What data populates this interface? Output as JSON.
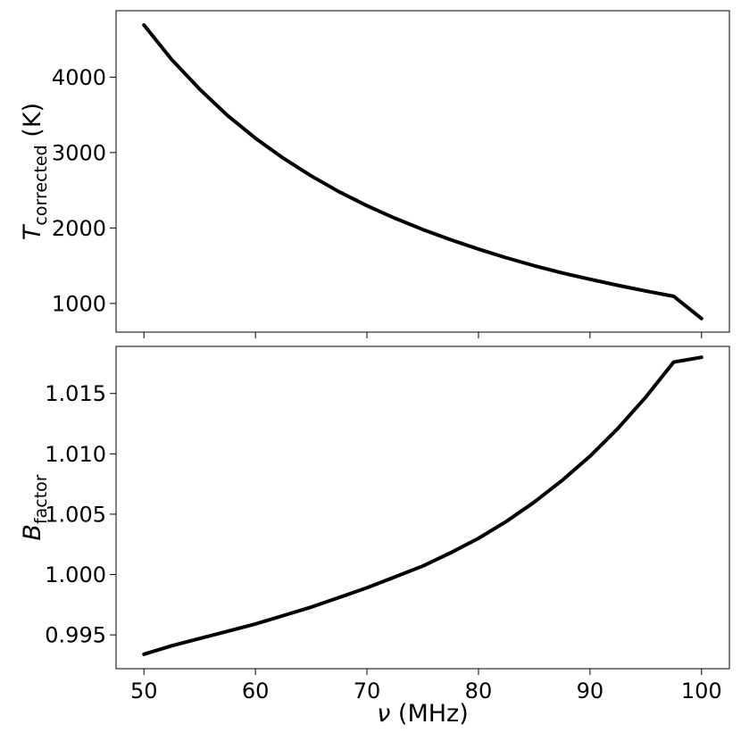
{
  "chart_data": [
    {
      "type": "line",
      "panel": "top",
      "ylabel_main": "T",
      "ylabel_sub": "corrected",
      "ylabel_unit": "(K)",
      "xlim": [
        47.5,
        102.5
      ],
      "ylim": [
        620,
        4880
      ],
      "yticks": [
        1000,
        2000,
        3000,
        4000
      ],
      "ytick_labels": [
        "1000",
        "2000",
        "3000",
        "4000"
      ],
      "xticks": [
        50,
        60,
        70,
        80,
        90,
        100
      ],
      "show_xtick_labels": false,
      "series": [
        {
          "color": "#000000",
          "x": [
            50,
            52.5,
            55,
            57.5,
            60,
            62.5,
            65,
            67.5,
            70,
            72.5,
            75,
            77.5,
            80,
            82.5,
            85,
            87.5,
            90,
            92.5,
            95,
            97.5,
            100
          ],
          "y": [
            4690,
            4230,
            3840,
            3490,
            3190,
            2925,
            2690,
            2480,
            2295,
            2130,
            1980,
            1845,
            1720,
            1605,
            1500,
            1405,
            1320,
            1240,
            1165,
            1095,
            800
          ]
        }
      ]
    },
    {
      "type": "line",
      "panel": "bottom",
      "ylabel_main": "B",
      "ylabel_sub": "factor",
      "xlabel_main": "ν",
      "xlabel_unit": "(MHz)",
      "xlim": [
        47.5,
        102.5
      ],
      "ylim": [
        0.9922,
        1.0189
      ],
      "yticks": [
        0.995,
        1.0,
        1.005,
        1.01,
        1.015
      ],
      "ytick_labels": [
        "0.995",
        "1.000",
        "1.005",
        "1.010",
        "1.015"
      ],
      "xticks": [
        50,
        60,
        70,
        80,
        90,
        100
      ],
      "xtick_labels": [
        "50",
        "60",
        "70",
        "80",
        "90",
        "100"
      ],
      "show_xtick_labels": true,
      "series": [
        {
          "color": "#000000",
          "x": [
            50,
            52.5,
            55,
            57.5,
            60,
            62.5,
            65,
            67.5,
            70,
            72.5,
            75,
            77.5,
            80,
            82.5,
            85,
            87.5,
            90,
            92.5,
            95,
            97.5,
            100
          ],
          "y": [
            0.9934,
            0.9941,
            0.9947,
            0.9953,
            0.9959,
            0.9966,
            0.9973,
            0.9981,
            0.9989,
            0.9998,
            1.0007,
            1.0018,
            1.003,
            1.0044,
            1.006,
            1.0078,
            1.0098,
            1.0121,
            1.0147,
            1.0176,
            1.018
          ]
        }
      ]
    }
  ]
}
